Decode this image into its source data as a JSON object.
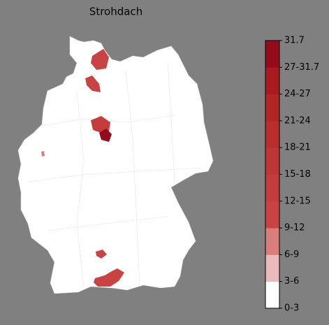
{
  "title": "Strohdach",
  "colorbar": {
    "labels": [
      "0-3",
      "3-6",
      "6-9",
      "9-12",
      "12-15",
      "15-18",
      "18-21",
      "21-24",
      "24-27",
      "27-31.7",
      "31.7"
    ],
    "colors": [
      "#ffffff",
      "#ebbbbb",
      "#d97d7d",
      "#c84343",
      "#c43d3d",
      "#bf3535",
      "#b92d2d",
      "#b22525",
      "#a81a1f",
      "#960b1c"
    ]
  }
}
